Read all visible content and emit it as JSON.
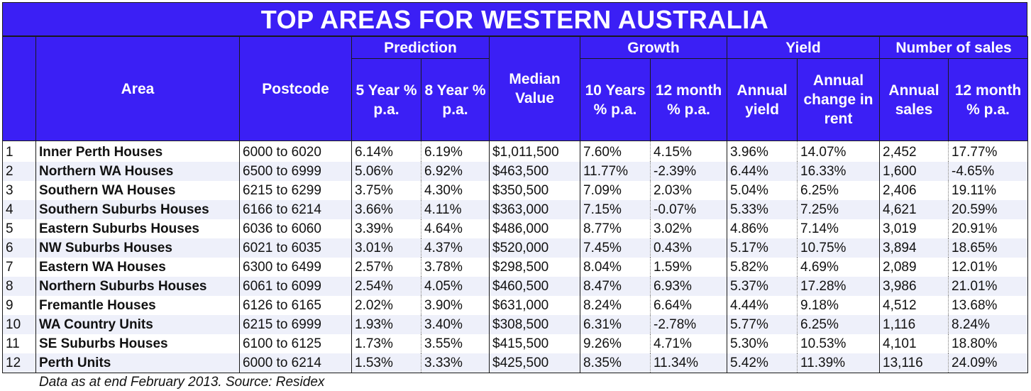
{
  "title": "TOP AREAS FOR WESTERN AUSTRALIA",
  "headers": {
    "area": "Area",
    "postcode": "Postcode",
    "prediction": "Prediction",
    "pred_5yr": "5 Year % p.a.",
    "pred_8yr": "8 Year % p.a.",
    "median_value": "Median Value",
    "growth": "Growth",
    "growth_10yr": "10 Years % p.a.",
    "growth_12m": "12 month % p.a.",
    "yield": "Yield",
    "annual_yield": "Annual yield",
    "annual_change_rent": "Annual change in rent",
    "number_of_sales": "Number of sales",
    "annual_sales": "Annual sales",
    "sales_12m": "12 month % p.a."
  },
  "rows": [
    {
      "rank": "1",
      "area": "Inner Perth Houses",
      "postcode": "6000 to 6020",
      "pred5": "6.14%",
      "pred8": "6.19%",
      "median": "$1,011,500",
      "g10": "7.60%",
      "g12": "4.15%",
      "yield": "3.96%",
      "rent": "14.07%",
      "sales": "2,452",
      "s12": "17.77%"
    },
    {
      "rank": "2",
      "area": "Northern WA Houses",
      "postcode": "6500 to 6999",
      "pred5": "5.06%",
      "pred8": "6.92%",
      "median": "$463,500",
      "g10": "11.77%",
      "g12": "-2.39%",
      "yield": "6.44%",
      "rent": "16.33%",
      "sales": "1,600",
      "s12": "-4.65%"
    },
    {
      "rank": "3",
      "area": "Southern WA Houses",
      "postcode": "6215 to 6299",
      "pred5": "3.75%",
      "pred8": "4.30%",
      "median": "$350,500",
      "g10": "7.09%",
      "g12": "2.03%",
      "yield": "5.04%",
      "rent": "6.25%",
      "sales": "2,406",
      "s12": "19.11%"
    },
    {
      "rank": "4",
      "area": "Southern Suburbs Houses",
      "postcode": "6166 to 6214",
      "pred5": "3.66%",
      "pred8": "4.11%",
      "median": "$363,000",
      "g10": "7.15%",
      "g12": "-0.07%",
      "yield": "5.33%",
      "rent": "7.25%",
      "sales": "4,621",
      "s12": "20.59%"
    },
    {
      "rank": "5",
      "area": "Eastern Suburbs Houses",
      "postcode": "6036 to 6060",
      "pred5": "3.39%",
      "pred8": "4.64%",
      "median": "$486,000",
      "g10": "8.77%",
      "g12": "3.02%",
      "yield": "4.86%",
      "rent": "7.14%",
      "sales": "3,019",
      "s12": "20.91%"
    },
    {
      "rank": "6",
      "area": "NW Suburbs Houses",
      "postcode": "6021 to 6035",
      "pred5": "3.01%",
      "pred8": "4.37%",
      "median": "$520,000",
      "g10": "7.45%",
      "g12": "0.43%",
      "yield": "5.17%",
      "rent": "10.75%",
      "sales": "3,894",
      "s12": "18.65%"
    },
    {
      "rank": "7",
      "area": "Eastern WA Houses",
      "postcode": "6300 to 6499",
      "pred5": "2.57%",
      "pred8": "3.78%",
      "median": "$298,500",
      "g10": "8.04%",
      "g12": "1.59%",
      "yield": "5.82%",
      "rent": "4.69%",
      "sales": "2,089",
      "s12": "12.01%"
    },
    {
      "rank": "8",
      "area": "Northern Suburbs Houses",
      "postcode": "6061 to 6099",
      "pred5": "2.54%",
      "pred8": "4.05%",
      "median": "$460,500",
      "g10": "8.47%",
      "g12": "6.93%",
      "yield": "5.37%",
      "rent": "17.28%",
      "sales": "3,986",
      "s12": "21.01%"
    },
    {
      "rank": "9",
      "area": "Fremantle Houses",
      "postcode": "6126 to 6165",
      "pred5": "2.02%",
      "pred8": "3.90%",
      "median": "$631,000",
      "g10": "8.24%",
      "g12": "6.64%",
      "yield": "4.44%",
      "rent": "9.18%",
      "sales": "4,512",
      "s12": "13.68%"
    },
    {
      "rank": "10",
      "area": "WA Country Units",
      "postcode": "6215 to 6999",
      "pred5": "1.93%",
      "pred8": "3.40%",
      "median": "$308,500",
      "g10": "6.31%",
      "g12": "-2.78%",
      "yield": "5.77%",
      "rent": "6.25%",
      "sales": "1,116",
      "s12": "8.24%"
    },
    {
      "rank": "11",
      "area": "SE Suburbs Houses",
      "postcode": "6100 to 6125",
      "pred5": "1.73%",
      "pred8": "3.55%",
      "median": "$415,500",
      "g10": "9.26%",
      "g12": "4.71%",
      "yield": "5.30%",
      "rent": "10.53%",
      "sales": "4,101",
      "s12": "18.80%"
    },
    {
      "rank": "12",
      "area": "Perth Units",
      "postcode": "6000 to 6214",
      "pred5": "1.53%",
      "pred8": "3.33%",
      "median": "$425,500",
      "g10": "8.35%",
      "g12": "11.34%",
      "yield": "5.42%",
      "rent": "11.39%",
      "sales": "13,116",
      "s12": "24.09%"
    }
  ],
  "footnote": "Data as at end February 2013. Source: Residex"
}
